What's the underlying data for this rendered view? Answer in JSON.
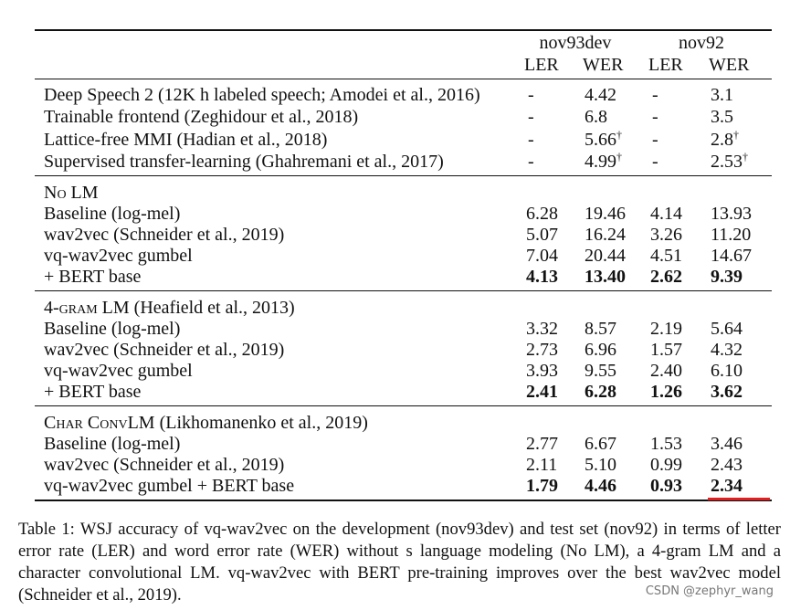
{
  "table": {
    "column_groups": [
      "nov93dev",
      "nov92"
    ],
    "columns": [
      "LER",
      "WER",
      "LER",
      "WER"
    ],
    "sections": [
      {
        "rows": [
          {
            "label": "Deep Speech 2 (12K h labeled speech; Amodei et al., 2016)",
            "cells": [
              {
                "text": "-"
              },
              {
                "text": "4.42"
              },
              {
                "text": "-"
              },
              {
                "text": "3.1"
              }
            ]
          },
          {
            "label": "Trainable frontend (Zeghidour et al., 2018)",
            "cells": [
              {
                "text": "-"
              },
              {
                "text": "6.8"
              },
              {
                "text": "-"
              },
              {
                "text": "3.5"
              }
            ]
          },
          {
            "label": "Lattice-free MMI (Hadian et al., 2018)",
            "cells": [
              {
                "text": "-"
              },
              {
                "text": "5.66",
                "note": "†"
              },
              {
                "text": "-"
              },
              {
                "text": "2.8",
                "note": "†"
              }
            ]
          },
          {
            "label": "Supervised transfer-learning (Ghahremani et al., 2017)",
            "cells": [
              {
                "text": "-"
              },
              {
                "text": "4.99",
                "note": "†"
              },
              {
                "text": "-"
              },
              {
                "text": "2.53",
                "note": "†"
              }
            ]
          }
        ]
      },
      {
        "title": "No LM",
        "rows": [
          {
            "label": "Baseline (log-mel)",
            "cells": [
              {
                "text": "6.28"
              },
              {
                "text": "19.46"
              },
              {
                "text": "4.14"
              },
              {
                "text": "13.93"
              }
            ]
          },
          {
            "label": "wav2vec (Schneider et al., 2019)",
            "cells": [
              {
                "text": "5.07"
              },
              {
                "text": "16.24"
              },
              {
                "text": "3.26"
              },
              {
                "text": "11.20"
              }
            ]
          },
          {
            "label": "vq-wav2vec gumbel",
            "cells": [
              {
                "text": "7.04"
              },
              {
                "text": "20.44"
              },
              {
                "text": "4.51"
              },
              {
                "text": "14.67"
              }
            ]
          },
          {
            "label": "+ BERT base",
            "bold": true,
            "cells": [
              {
                "text": "4.13"
              },
              {
                "text": "13.40"
              },
              {
                "text": "2.62"
              },
              {
                "text": "9.39"
              }
            ]
          }
        ]
      },
      {
        "title": "4-gram LM",
        "cite": "(Heafield et al., 2013)",
        "rows": [
          {
            "label": "Baseline (log-mel)",
            "cells": [
              {
                "text": "3.32"
              },
              {
                "text": "8.57"
              },
              {
                "text": "2.19"
              },
              {
                "text": "5.64"
              }
            ]
          },
          {
            "label": "wav2vec (Schneider et al., 2019)",
            "cells": [
              {
                "text": "2.73"
              },
              {
                "text": "6.96"
              },
              {
                "text": "1.57"
              },
              {
                "text": "4.32"
              }
            ]
          },
          {
            "label": "vq-wav2vec gumbel",
            "cells": [
              {
                "text": "3.93"
              },
              {
                "text": "9.55"
              },
              {
                "text": "2.40"
              },
              {
                "text": "6.10"
              }
            ]
          },
          {
            "label": "+ BERT base",
            "bold": true,
            "cells": [
              {
                "text": "2.41"
              },
              {
                "text": "6.28"
              },
              {
                "text": "1.26"
              },
              {
                "text": "3.62"
              }
            ]
          }
        ]
      },
      {
        "title": "Char ConvLM",
        "cite": "(Likhomanenko et al., 2019)",
        "rows": [
          {
            "label": "Baseline (log-mel)",
            "cells": [
              {
                "text": "2.77"
              },
              {
                "text": "6.67"
              },
              {
                "text": "1.53"
              },
              {
                "text": "3.46"
              }
            ]
          },
          {
            "label": "wav2vec (Schneider et al., 2019)",
            "cells": [
              {
                "text": "2.11"
              },
              {
                "text": "5.10"
              },
              {
                "text": "0.99"
              },
              {
                "text": "2.43"
              }
            ]
          },
          {
            "label": "vq-wav2vec gumbel + BERT base",
            "bold_cells": true,
            "cells": [
              {
                "text": "1.79"
              },
              {
                "text": "4.46"
              },
              {
                "text": "0.93"
              },
              {
                "text": "2.34"
              }
            ]
          }
        ]
      }
    ],
    "caption": "Table 1: WSJ accuracy of vq-wav2vec on the development (nov93dev) and test set (nov92) in terms of letter error rate (LER) and word error rate (WER) without s language modeling (No LM), a 4-gram LM and a character convolutional LM. vq-wav2vec with BERT pre-training improves over the best wav2vec model (Schneider et al., 2019)."
  },
  "watermark": "CSDN @zephyr_wang"
}
